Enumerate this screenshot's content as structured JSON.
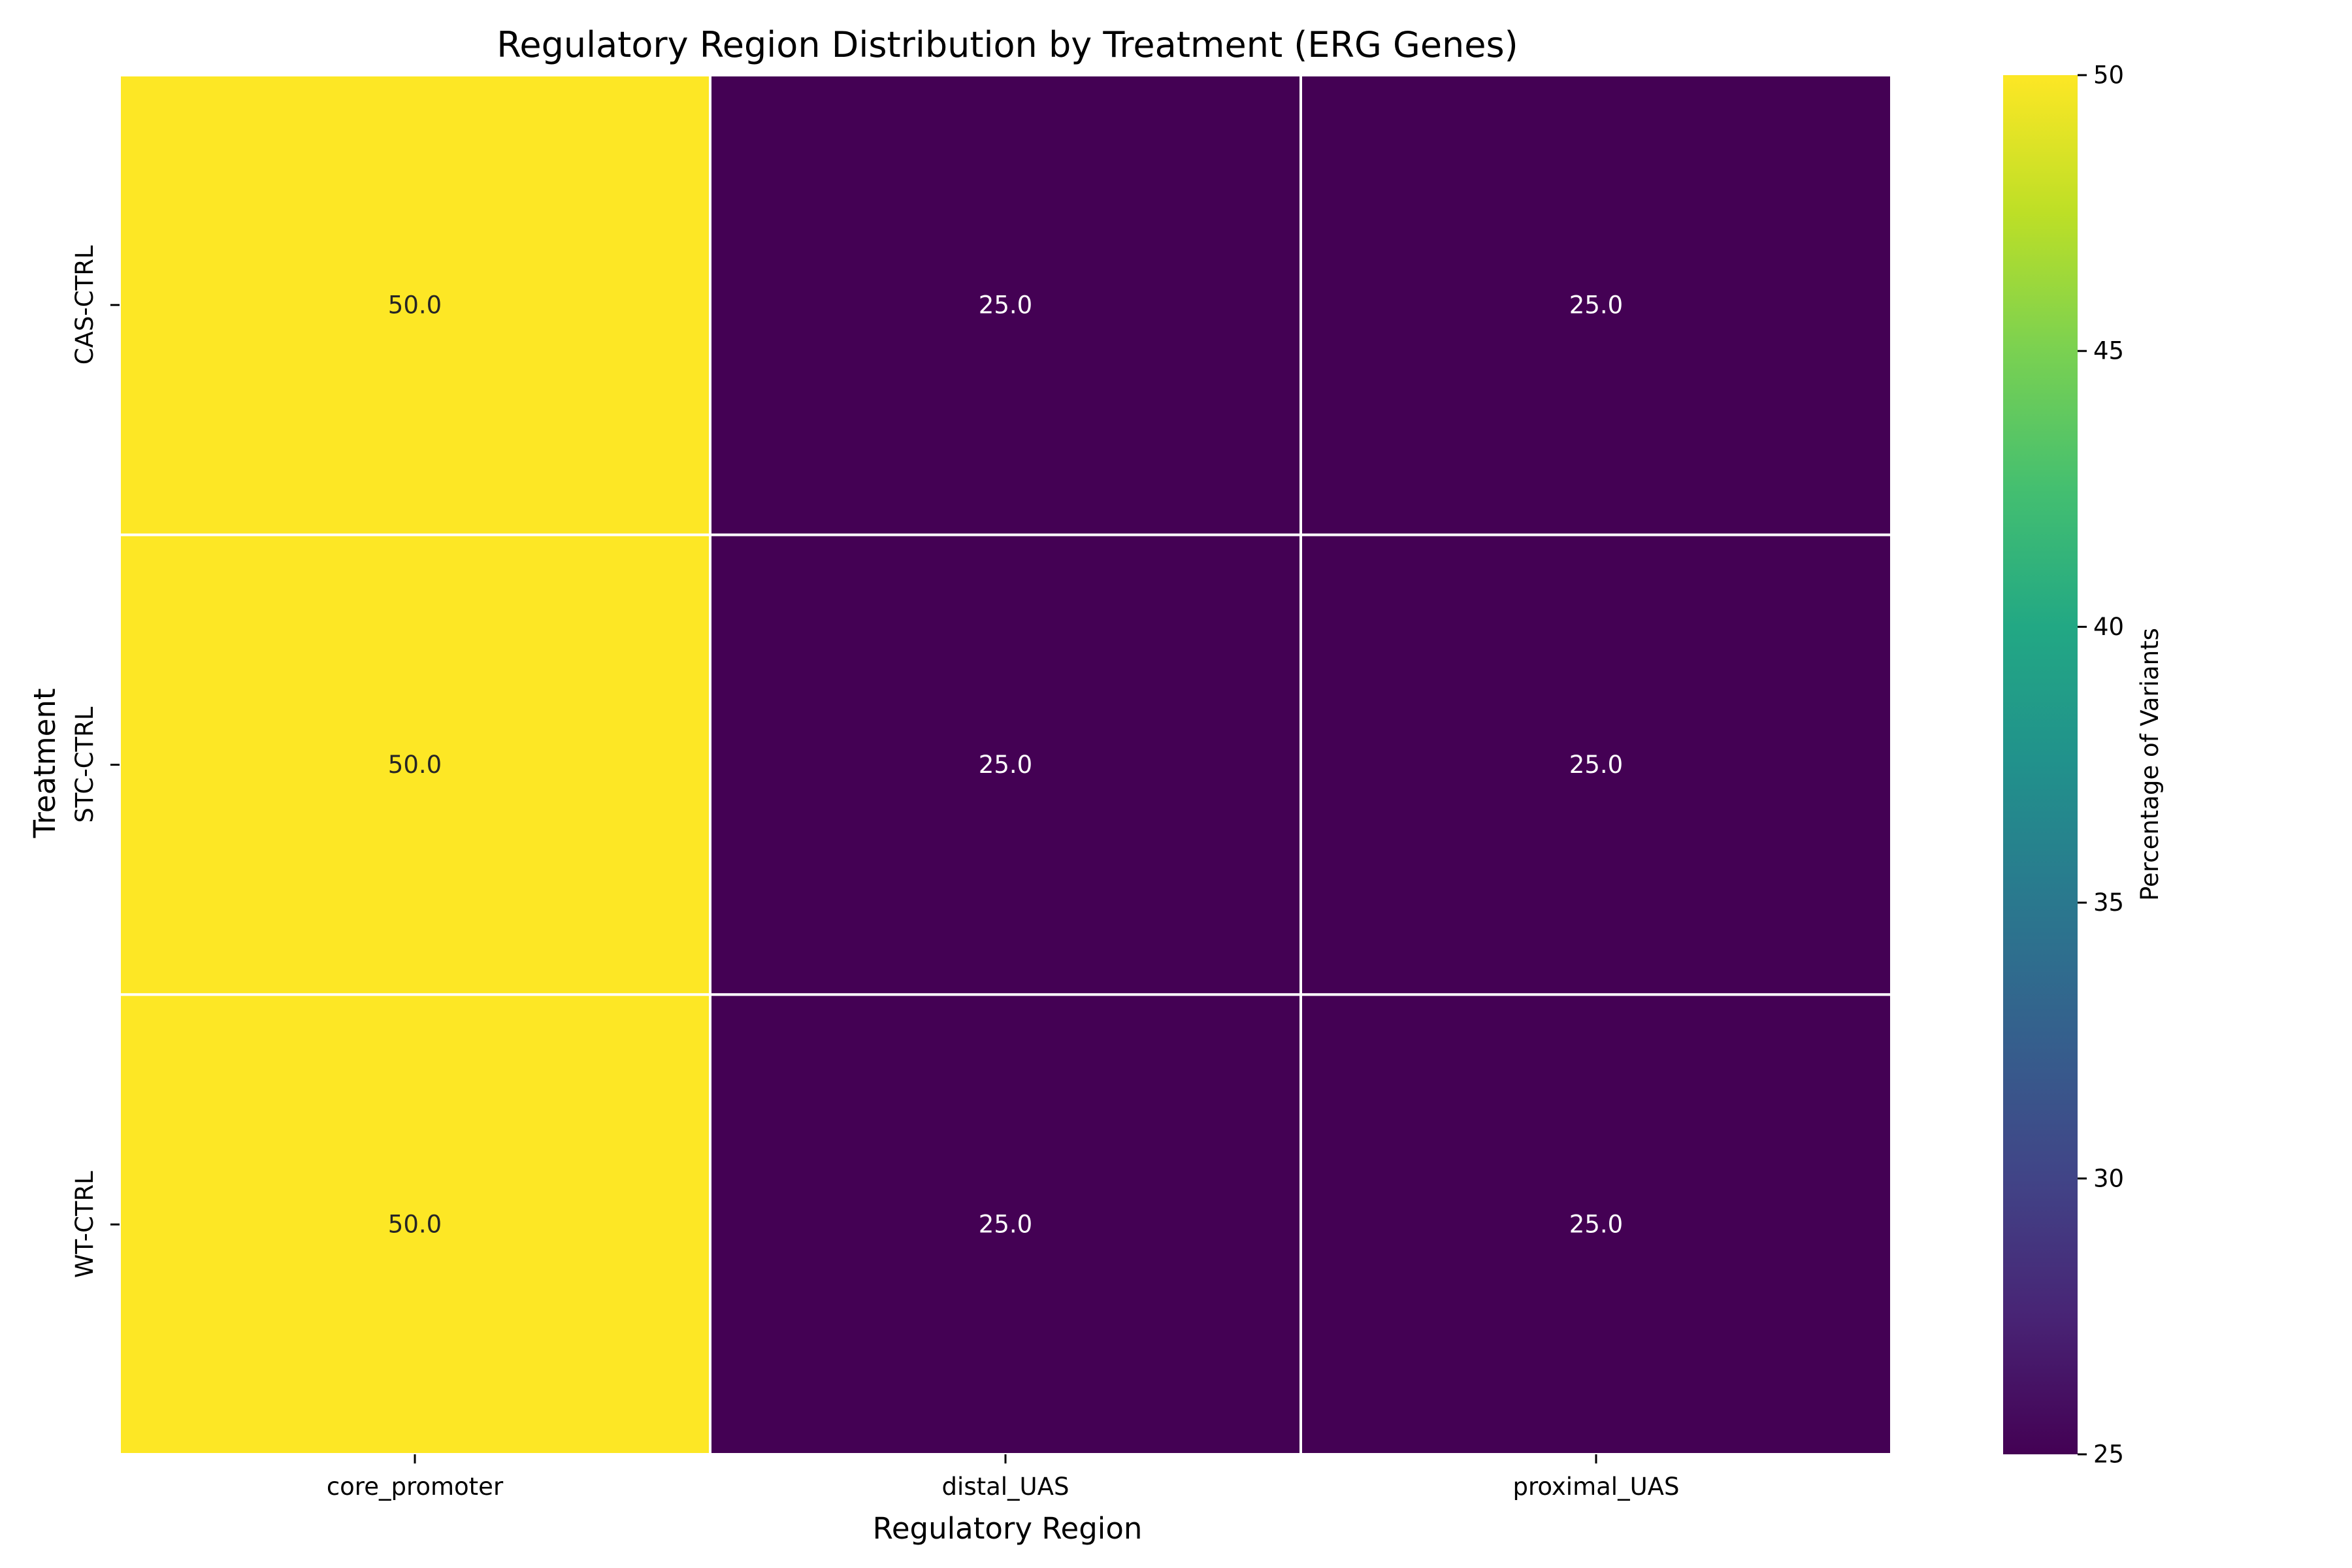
{
  "chart_data": {
    "type": "heatmap",
    "title": "Regulatory Region Distribution by Treatment (ERG Genes)",
    "xlabel": "Regulatory Region",
    "ylabel": "Treatment",
    "x_categories": [
      "core_promoter",
      "distal_UAS",
      "proximal_UAS"
    ],
    "y_categories": [
      "CAS-CTRL",
      "STC-CTRL",
      "WT-CTRL"
    ],
    "values": [
      [
        50.0,
        25.0,
        25.0
      ],
      [
        50.0,
        25.0,
        25.0
      ],
      [
        50.0,
        25.0,
        25.0
      ]
    ],
    "cell_labels": [
      [
        "50.0",
        "25.0",
        "25.0"
      ],
      [
        "50.0",
        "25.0",
        "25.0"
      ],
      [
        "50.0",
        "25.0",
        "25.0"
      ]
    ],
    "colormap": "viridis",
    "colorbar": {
      "label": "Percentage of Variants",
      "range": [
        25,
        50
      ],
      "ticks": [
        25,
        30,
        35,
        40,
        45,
        50
      ],
      "tick_labels": [
        "25",
        "30",
        "35",
        "40",
        "45",
        "50"
      ]
    },
    "colors": {
      "low": "#440154",
      "high": "#fde725",
      "grid": "#ffffff",
      "text_on_dark": "#ffffff",
      "text_on_light": "#262626"
    }
  }
}
